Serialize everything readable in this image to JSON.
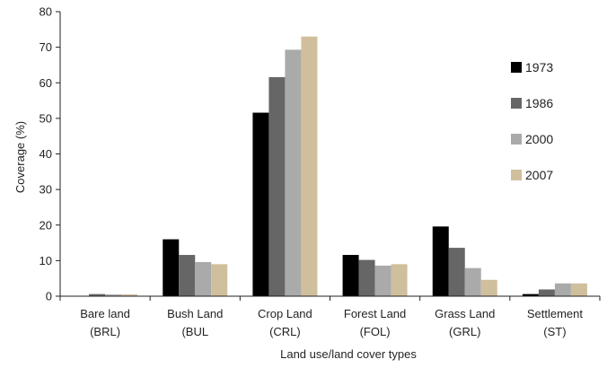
{
  "chart_data": {
    "type": "bar",
    "categories": [
      {
        "line1": "Bare land",
        "line2": "(BRL)"
      },
      {
        "line1": "Bush Land",
        "line2": "(BUL"
      },
      {
        "line1": "Crop Land",
        "line2": "(CRL)"
      },
      {
        "line1": "Forest Land",
        "line2": "(FOL)"
      },
      {
        "line1": "Grass Land",
        "line2": "(GRL)"
      },
      {
        "line1": "Settlement",
        "line2": "(ST)"
      }
    ],
    "series": [
      {
        "name": "1973",
        "color": "#000000",
        "values": [
          0.1,
          16,
          51.6,
          11.6,
          19.6,
          0.6
        ]
      },
      {
        "name": "1986",
        "color": "#666666",
        "values": [
          0.6,
          11.6,
          61.6,
          10.2,
          13.6,
          1.9
        ]
      },
      {
        "name": "2000",
        "color": "#aaaaaa",
        "values": [
          0.5,
          9.6,
          69.3,
          8.6,
          7.9,
          3.6
        ]
      },
      {
        "name": "2007",
        "color": "#d0bf9c",
        "values": [
          0.5,
          9,
          73,
          9,
          4.6,
          3.6
        ]
      }
    ],
    "title": "",
    "xlabel": "Land use/land cover types",
    "ylabel": "Coverage (%)",
    "ylim": [
      0,
      80
    ],
    "yticks": [
      "0",
      "10",
      "20",
      "30",
      "40",
      "50",
      "60",
      "70",
      "80"
    ],
    "grid": false,
    "legend_position": "right"
  }
}
